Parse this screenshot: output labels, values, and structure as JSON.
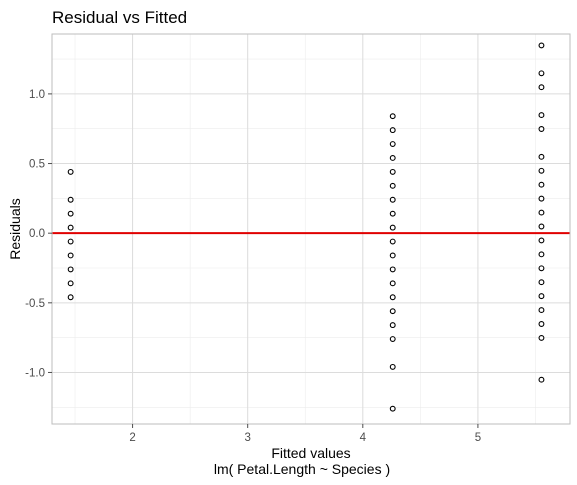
{
  "chart_data": {
    "type": "scatter",
    "title": "Residual vs Fitted",
    "xlabel": "Fitted values",
    "xlabel_sub": "lm( Petal.Length ~ Species )",
    "ylabel": "Residuals",
    "xlim": [
      1.3,
      5.8
    ],
    "ylim": [
      -1.37,
      1.43
    ],
    "x_ticks": [
      2,
      3,
      4,
      5
    ],
    "y_ticks": [
      -1.0,
      -0.5,
      0.0,
      0.5,
      1.0
    ],
    "x_tick_labels": [
      "2",
      "3",
      "4",
      "5"
    ],
    "y_tick_labels": [
      "-1.0",
      "-0.5",
      "0.0",
      "0.5",
      "1.0"
    ],
    "grid": true,
    "reference_line": {
      "y": 0,
      "color": "#e00000"
    },
    "groups": [
      {
        "x": 1.462,
        "residuals": [
          0.44,
          0.24,
          0.14,
          0.04,
          -0.06,
          -0.16,
          -0.26,
          -0.36,
          -0.46
        ]
      },
      {
        "x": 4.26,
        "residuals": [
          0.84,
          0.74,
          0.64,
          0.54,
          0.44,
          0.34,
          0.24,
          0.14,
          0.04,
          -0.06,
          -0.16,
          -0.26,
          -0.36,
          -0.46,
          -0.56,
          -0.66,
          -0.76,
          -0.96,
          -1.26
        ]
      },
      {
        "x": 5.552,
        "residuals": [
          1.348,
          1.148,
          1.048,
          0.848,
          0.748,
          0.548,
          0.448,
          0.348,
          0.248,
          0.148,
          0.048,
          -0.052,
          -0.152,
          -0.252,
          -0.352,
          -0.452,
          -0.552,
          -0.652,
          -0.752,
          -1.052
        ]
      }
    ]
  }
}
